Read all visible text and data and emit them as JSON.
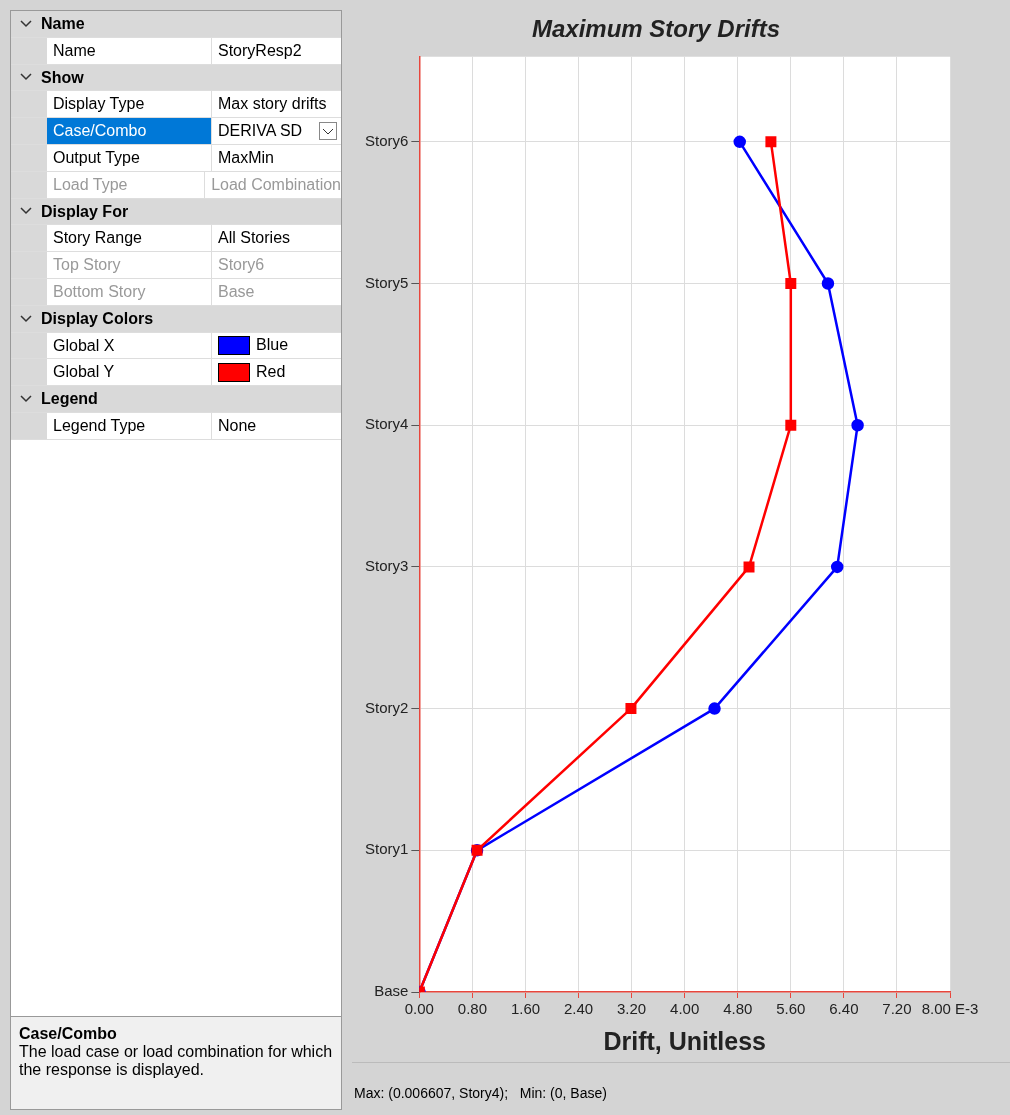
{
  "chart_data": [
    {
      "type": "other",
      "annotations": [
        "Name",
        "Name",
        "StoryResp2",
        "Show",
        "Display Type",
        "Max story drifts",
        "Case/Combo",
        "DERIVA SD",
        "Output Type",
        "MaxMin",
        "Load Type",
        "Load Combination",
        "Display For",
        "Story Range",
        "All Stories",
        "Top Story",
        "Story6",
        "Bottom Story",
        "Base",
        "Display Colors",
        "Global X",
        "Blue",
        "Global Y",
        "Red",
        "Legend",
        "Legend Type",
        "None",
        "Case/Combo",
        "The load case or load combination for which the response is displayed."
      ]
    },
    {
      "type": "line",
      "title": "Maximum Story Drifts",
      "xlabel": "Drift, Unitless",
      "xlim": [
        0,
        8
      ],
      "xticks": [
        {
          "value": 0,
          "label": "0.00"
        },
        {
          "value": 0.8,
          "label": "0.80"
        },
        {
          "value": 1.6,
          "label": "1.60"
        },
        {
          "value": 2.4,
          "label": "2.40"
        },
        {
          "value": 3.2,
          "label": "3.20"
        },
        {
          "value": 4,
          "label": "4.00"
        },
        {
          "value": 4.8,
          "label": "4.80"
        },
        {
          "value": 5.6,
          "label": "5.60"
        },
        {
          "value": 6.4,
          "label": "6.40"
        },
        {
          "value": 7.2,
          "label": "7.20"
        },
        {
          "value": 8,
          "label": "8.00 E-3"
        }
      ],
      "orientation": "horizontal",
      "categories": [
        "Story6",
        "Story5",
        "Story4",
        "Story3",
        "Story2",
        "Story1",
        "Base"
      ],
      "grid": true,
      "line_style": "solid",
      "series": [
        {
          "color": "#0000ff",
          "marker": "circle",
          "values": [
            4.83,
            6.16,
            6.607,
            6.3,
            4.45,
            0.87,
            0
          ]
        },
        {
          "color": "#ff0000",
          "marker": "square",
          "values": [
            5.3,
            5.6,
            5.6,
            4.97,
            3.19,
            0.87,
            0
          ]
        }
      ],
      "annotations": [
        "Max: (0.006607, Story4);   Min: (0, Base)"
      ]
    }
  ]
}
